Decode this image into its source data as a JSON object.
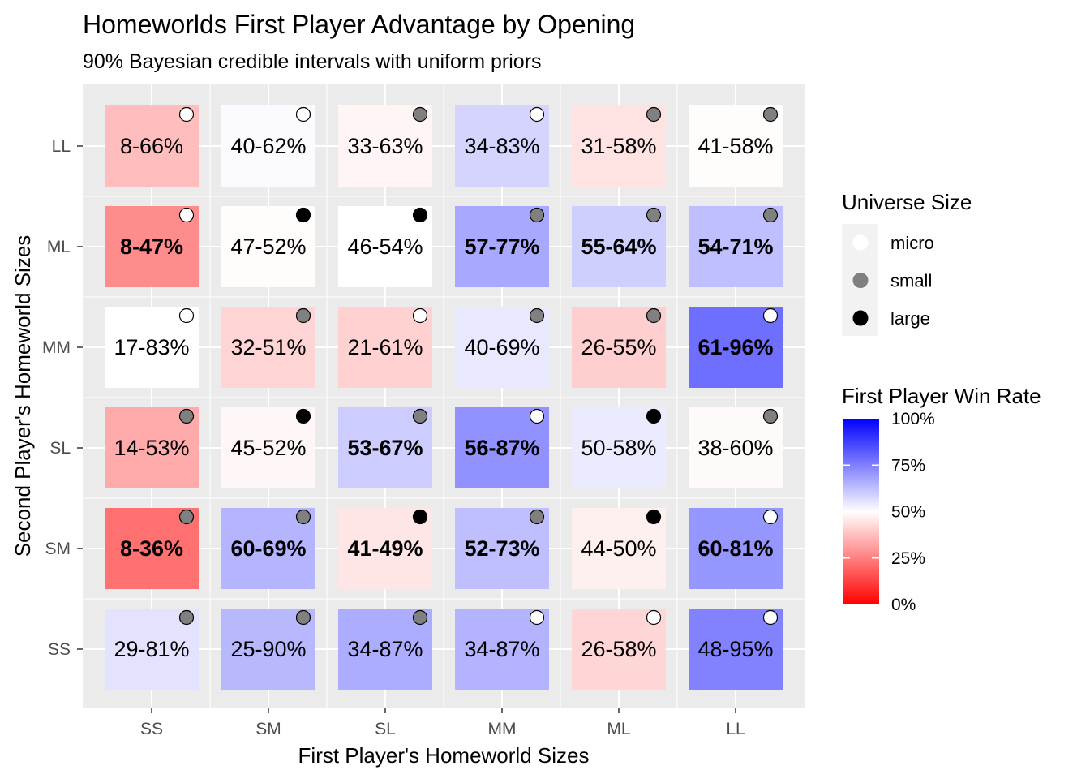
{
  "chart_data": {
    "type": "heatmap",
    "title": "Homeworlds First Player Advantage by Opening",
    "subtitle": "90% Bayesian credible intervals with uniform priors",
    "xlabel": "First Player's Homeworld Sizes",
    "ylabel": "Second Player's Homeworld Sizes",
    "x_categories": [
      "SS",
      "SM",
      "SL",
      "MM",
      "ML",
      "LL"
    ],
    "y_categories": [
      "SS",
      "SM",
      "SL",
      "MM",
      "ML",
      "LL"
    ],
    "grid": true,
    "cells": [
      {
        "x": "SS",
        "y": "LL",
        "label": "8-66%",
        "win_rate": 0.37,
        "bold": false,
        "universe": "micro"
      },
      {
        "x": "SM",
        "y": "LL",
        "label": "40-62%",
        "win_rate": 0.51,
        "bold": false,
        "universe": "micro"
      },
      {
        "x": "SL",
        "y": "LL",
        "label": "33-63%",
        "win_rate": 0.48,
        "bold": false,
        "universe": "small"
      },
      {
        "x": "MM",
        "y": "LL",
        "label": "34-83%",
        "win_rate": 0.585,
        "bold": false,
        "universe": "micro"
      },
      {
        "x": "ML",
        "y": "LL",
        "label": "31-58%",
        "win_rate": 0.445,
        "bold": false,
        "universe": "small"
      },
      {
        "x": "LL",
        "y": "LL",
        "label": "41-58%",
        "win_rate": 0.495,
        "bold": false,
        "universe": "small"
      },
      {
        "x": "SS",
        "y": "ML",
        "label": "8-47%",
        "win_rate": 0.275,
        "bold": true,
        "universe": "micro"
      },
      {
        "x": "SM",
        "y": "ML",
        "label": "47-52%",
        "win_rate": 0.495,
        "bold": false,
        "universe": "large"
      },
      {
        "x": "SL",
        "y": "ML",
        "label": "46-54%",
        "win_rate": 0.5,
        "bold": false,
        "universe": "large"
      },
      {
        "x": "MM",
        "y": "ML",
        "label": "57-77%",
        "win_rate": 0.67,
        "bold": true,
        "universe": "small"
      },
      {
        "x": "ML",
        "y": "ML",
        "label": "55-64%",
        "win_rate": 0.595,
        "bold": true,
        "universe": "small"
      },
      {
        "x": "LL",
        "y": "ML",
        "label": "54-71%",
        "win_rate": 0.625,
        "bold": true,
        "universe": "small"
      },
      {
        "x": "SS",
        "y": "MM",
        "label": "17-83%",
        "win_rate": 0.5,
        "bold": false,
        "universe": "micro"
      },
      {
        "x": "SM",
        "y": "MM",
        "label": "32-51%",
        "win_rate": 0.415,
        "bold": false,
        "universe": "small"
      },
      {
        "x": "SL",
        "y": "MM",
        "label": "21-61%",
        "win_rate": 0.41,
        "bold": false,
        "universe": "micro"
      },
      {
        "x": "MM",
        "y": "MM",
        "label": "40-69%",
        "win_rate": 0.545,
        "bold": false,
        "universe": "small"
      },
      {
        "x": "ML",
        "y": "MM",
        "label": "26-55%",
        "win_rate": 0.405,
        "bold": false,
        "universe": "small"
      },
      {
        "x": "LL",
        "y": "MM",
        "label": "61-96%",
        "win_rate": 0.785,
        "bold": true,
        "universe": "micro"
      },
      {
        "x": "SS",
        "y": "SL",
        "label": "14-53%",
        "win_rate": 0.335,
        "bold": false,
        "universe": "small"
      },
      {
        "x": "SM",
        "y": "SL",
        "label": "45-52%",
        "win_rate": 0.485,
        "bold": false,
        "universe": "large"
      },
      {
        "x": "SL",
        "y": "SL",
        "label": "53-67%",
        "win_rate": 0.6,
        "bold": true,
        "universe": "small"
      },
      {
        "x": "MM",
        "y": "SL",
        "label": "56-87%",
        "win_rate": 0.715,
        "bold": true,
        "universe": "micro"
      },
      {
        "x": "ML",
        "y": "SL",
        "label": "50-58%",
        "win_rate": 0.54,
        "bold": false,
        "universe": "large"
      },
      {
        "x": "LL",
        "y": "SL",
        "label": "38-60%",
        "win_rate": 0.49,
        "bold": false,
        "universe": "small"
      },
      {
        "x": "SS",
        "y": "SM",
        "label": "8-36%",
        "win_rate": 0.22,
        "bold": true,
        "universe": "small"
      },
      {
        "x": "SM",
        "y": "SM",
        "label": "60-69%",
        "win_rate": 0.645,
        "bold": true,
        "universe": "small"
      },
      {
        "x": "SL",
        "y": "SM",
        "label": "41-49%",
        "win_rate": 0.45,
        "bold": true,
        "universe": "large"
      },
      {
        "x": "MM",
        "y": "SM",
        "label": "52-73%",
        "win_rate": 0.625,
        "bold": true,
        "universe": "small"
      },
      {
        "x": "ML",
        "y": "SM",
        "label": "44-50%",
        "win_rate": 0.47,
        "bold": false,
        "universe": "large"
      },
      {
        "x": "LL",
        "y": "SM",
        "label": "60-81%",
        "win_rate": 0.705,
        "bold": true,
        "universe": "micro"
      },
      {
        "x": "SS",
        "y": "SS",
        "label": "29-81%",
        "win_rate": 0.555,
        "bold": false,
        "universe": "small"
      },
      {
        "x": "SM",
        "y": "SS",
        "label": "25-90%",
        "win_rate": 0.64,
        "bold": false,
        "universe": "small"
      },
      {
        "x": "SL",
        "y": "SS",
        "label": "34-87%",
        "win_rate": 0.66,
        "bold": false,
        "universe": "small"
      },
      {
        "x": "MM",
        "y": "SS",
        "label": "34-87%",
        "win_rate": 0.65,
        "bold": false,
        "universe": "micro"
      },
      {
        "x": "ML",
        "y": "SS",
        "label": "26-58%",
        "win_rate": 0.42,
        "bold": false,
        "universe": "micro"
      },
      {
        "x": "LL",
        "y": "SS",
        "label": "48-95%",
        "win_rate": 0.745,
        "bold": false,
        "universe": "micro"
      }
    ],
    "legend_universe": {
      "title": "Universe Size",
      "items": [
        {
          "label": "micro",
          "color": "#ffffff"
        },
        {
          "label": "small",
          "color": "#808080"
        },
        {
          "label": "large",
          "color": "#000000"
        }
      ]
    },
    "legend_win_rate": {
      "title": "First Player Win Rate",
      "low_color": "#ff0000",
      "mid_color": "#ffffff",
      "high_color": "#0000ff",
      "ticks": [
        {
          "value": 0,
          "label": "0%"
        },
        {
          "value": 0.25,
          "label": "25%"
        },
        {
          "value": 0.5,
          "label": "50%"
        },
        {
          "value": 0.75,
          "label": "75%"
        },
        {
          "value": 1,
          "label": "100%"
        }
      ]
    },
    "legend_placement": "right"
  }
}
